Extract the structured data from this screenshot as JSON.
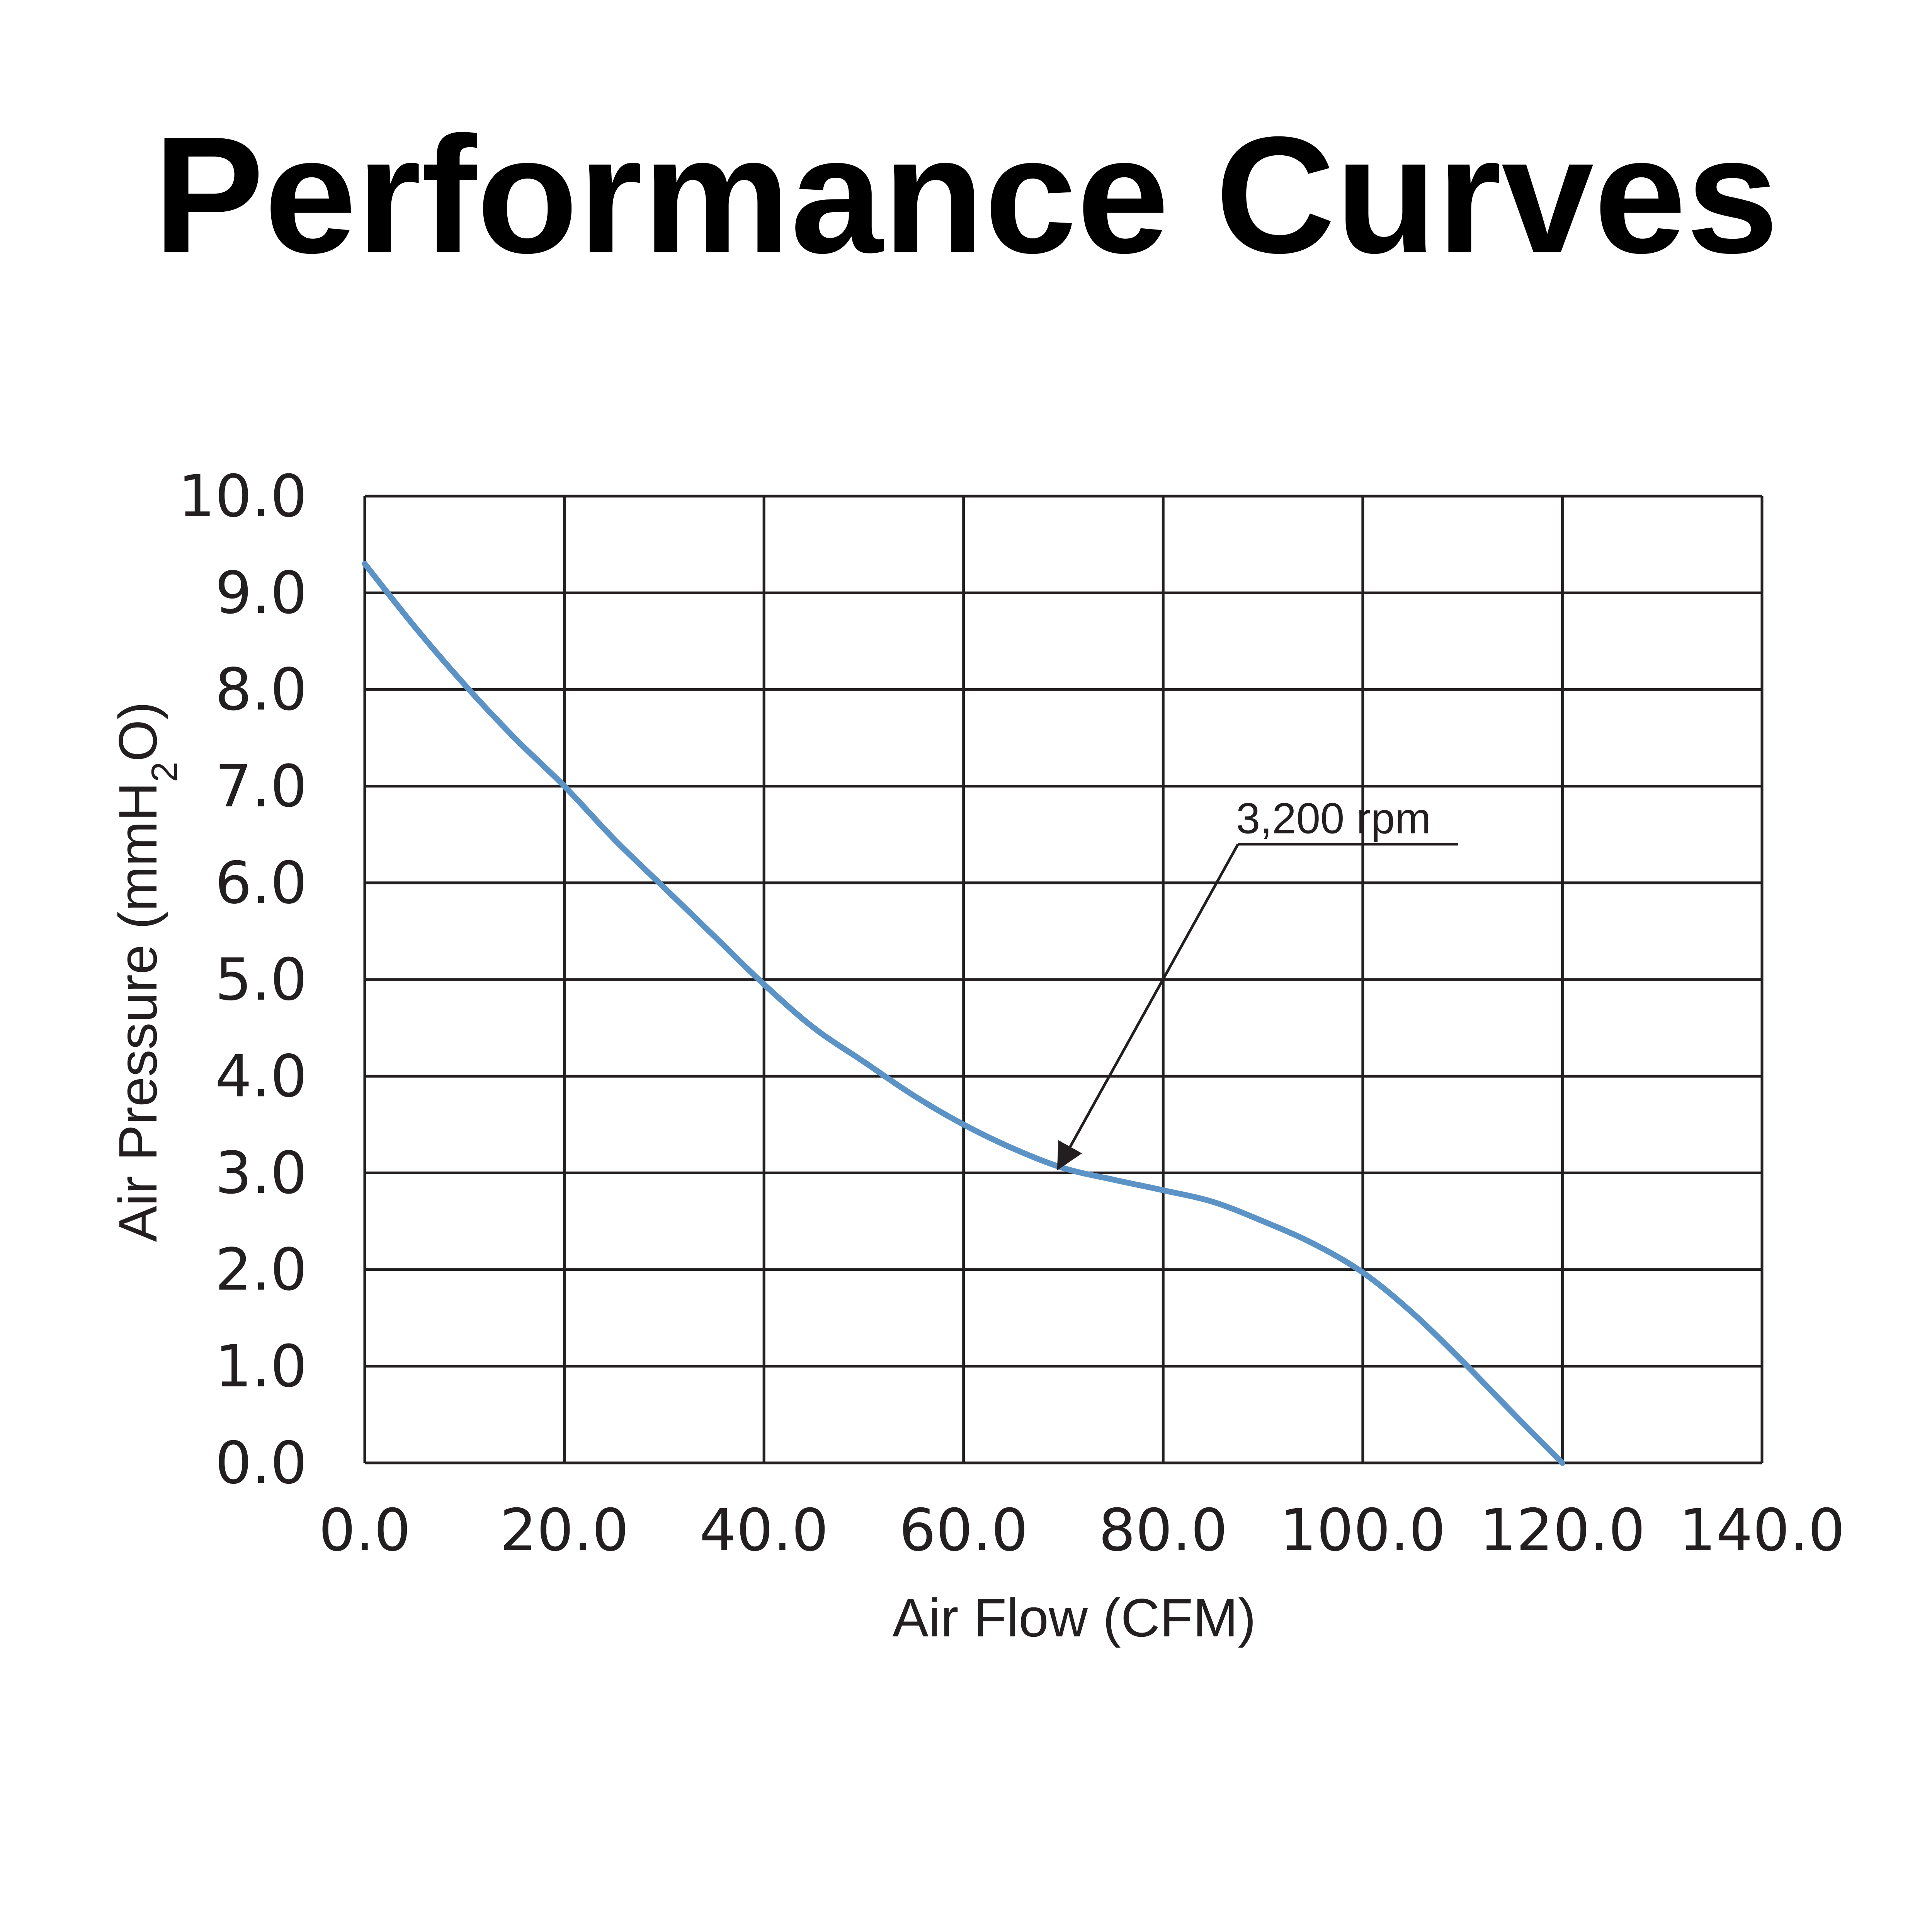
{
  "chart_data": {
    "type": "line",
    "title": "Performance Curves",
    "xlabel": "Air Flow (CFM)",
    "ylabel": {
      "prefix": "Air Pressure (mmH",
      "subscript": "2",
      "suffix": "O)"
    },
    "xlim": [
      0,
      140
    ],
    "ylim": [
      0,
      10
    ],
    "x_ticks": [
      "0.0",
      "20.0",
      "40.0",
      "60.0",
      "80.0",
      "100.0",
      "120.0",
      "140.0"
    ],
    "y_ticks": [
      "0.0",
      "1.0",
      "2.0",
      "3.0",
      "4.0",
      "5.0",
      "6.0",
      "7.0",
      "8.0",
      "9.0",
      "10.0"
    ],
    "grid": true,
    "series": [
      {
        "name": "3,200 rpm",
        "color": "#5b93c6",
        "points": [
          [
            0,
            9.3
          ],
          [
            5,
            8.65
          ],
          [
            10,
            8.05
          ],
          [
            15,
            7.5
          ],
          [
            20,
            7.0
          ],
          [
            25,
            6.45
          ],
          [
            30,
            5.95
          ],
          [
            35,
            5.45
          ],
          [
            40,
            4.95
          ],
          [
            45,
            4.5
          ],
          [
            50,
            4.15
          ],
          [
            55,
            3.8
          ],
          [
            60,
            3.5
          ],
          [
            65,
            3.25
          ],
          [
            70,
            3.05
          ],
          [
            75,
            2.93
          ],
          [
            80,
            2.82
          ],
          [
            85,
            2.7
          ],
          [
            90,
            2.5
          ],
          [
            95,
            2.27
          ],
          [
            100,
            1.97
          ],
          [
            105,
            1.55
          ],
          [
            110,
            1.05
          ],
          [
            115,
            0.52
          ],
          [
            120,
            0.0
          ]
        ]
      }
    ],
    "annotations": [
      {
        "text": "3,200 rpm",
        "point": [
          69.5,
          3.05
        ],
        "label_at": [
          87.5,
          6.4
        ]
      }
    ]
  }
}
